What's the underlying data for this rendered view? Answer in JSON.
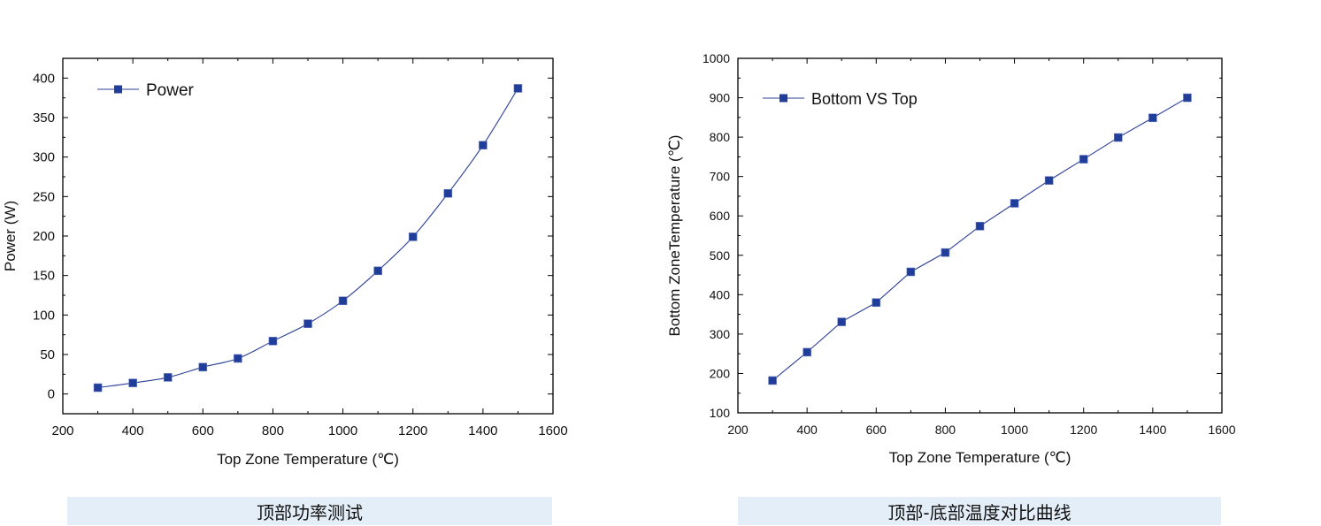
{
  "captions": {
    "left": "顶部功率测试",
    "right": "顶部-底部温度对比曲线"
  },
  "colors": {
    "series": "#1f3d99",
    "line": "#2a3f96",
    "axis": "#000000"
  },
  "chart_data": [
    {
      "type": "line",
      "title": "",
      "xlabel": "Top Zone Temperature (℃)",
      "ylabel": "Power (W)",
      "xlim": [
        200,
        1600
      ],
      "ylim": [
        -25,
        425
      ],
      "xticks": [
        200,
        400,
        600,
        800,
        1000,
        1200,
        1400,
        1600
      ],
      "yticks": [
        0,
        50,
        100,
        150,
        200,
        250,
        300,
        350,
        400
      ],
      "legend_position": "top-left",
      "grid": false,
      "series": [
        {
          "name": "Power",
          "x": [
            300,
            400,
            500,
            600,
            700,
            800,
            900,
            1000,
            1100,
            1200,
            1300,
            1400,
            1500
          ],
          "y": [
            8,
            14,
            21,
            34,
            45,
            67,
            89,
            118,
            156,
            199,
            254,
            315,
            387
          ]
        }
      ]
    },
    {
      "type": "line",
      "title": "",
      "xlabel": "Top Zone Temperature (℃)",
      "ylabel": "Bottom ZoneTemperature (℃)",
      "xlim": [
        200,
        1600
      ],
      "ylim": [
        100,
        1000
      ],
      "xticks": [
        200,
        400,
        600,
        800,
        1000,
        1200,
        1400,
        1600
      ],
      "yticks": [
        100,
        200,
        300,
        400,
        500,
        600,
        700,
        800,
        900,
        1000
      ],
      "legend_position": "top-left",
      "grid": false,
      "series": [
        {
          "name": "Bottom VS Top",
          "x": [
            300,
            400,
            500,
            600,
            700,
            800,
            900,
            1000,
            1100,
            1200,
            1300,
            1400,
            1500
          ],
          "y": [
            182,
            254,
            331,
            380,
            458,
            507,
            574,
            632,
            690,
            744,
            799,
            849,
            900
          ]
        }
      ]
    }
  ]
}
